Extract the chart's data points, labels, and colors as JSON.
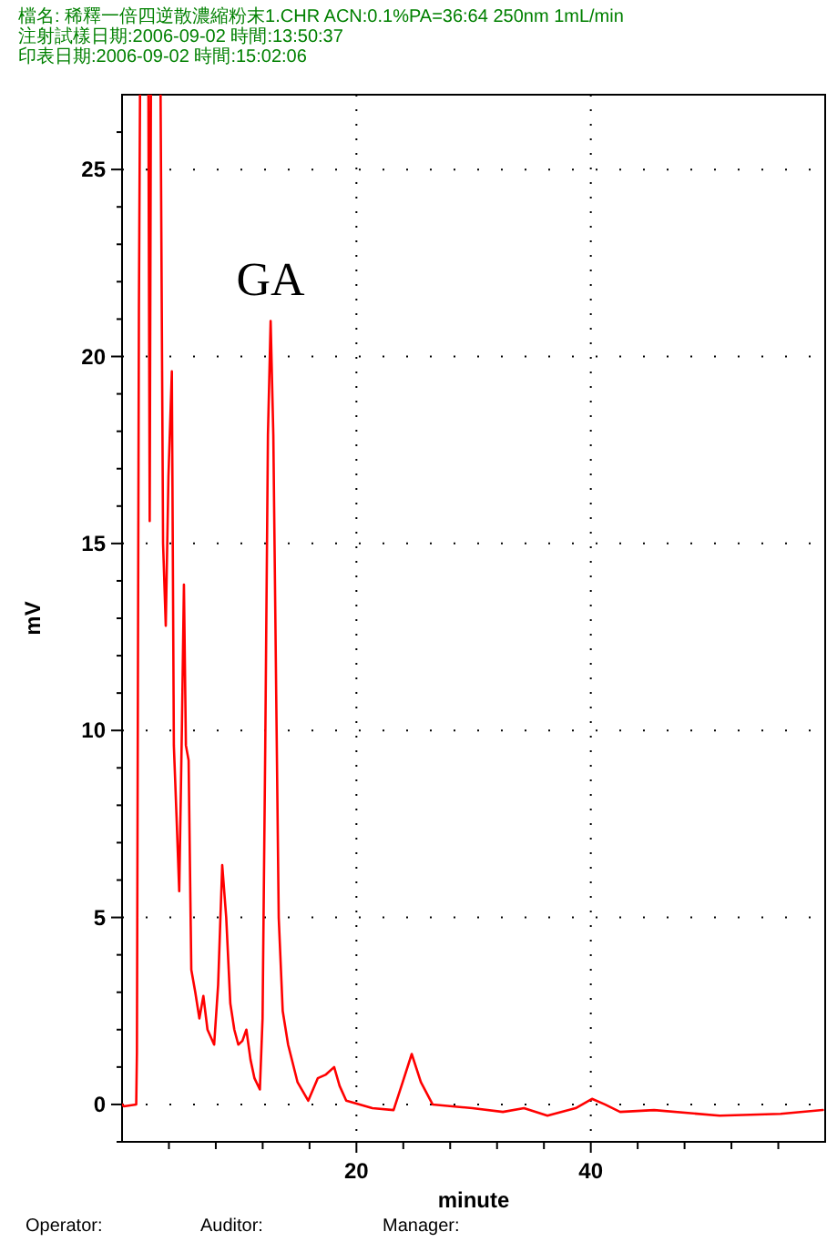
{
  "chart_data": {
    "type": "line",
    "title": "檔名: 稀釋一倍四逆散濃縮粉末1.CHR ACN:0.1%PA=36:64 250nm 1mL/min",
    "subtitle": "注射試樣日期:2006-09-02   時間:13:50:37\n印表日期:2006-09-02   時間:15:02:06",
    "xlabel": "minute",
    "ylabel": "mV",
    "annotations": [
      {
        "text": "GA",
        "x": 12.68,
        "y": 20.95
      },
      "Operator:",
      "Auditor:",
      "Manager:"
    ],
    "series": [
      {
        "color": "#ff0000",
        "x": [
          0,
          0.15,
          1.21,
          1.27,
          1.44,
          1.55,
          2.24,
          2.36,
          2.47,
          3.27,
          3.5,
          3.73,
          3.96,
          4.25,
          4.42,
          4.65,
          4.88,
          5.11,
          5.28,
          5.45,
          5.68,
          5.91,
          6.25,
          6.6,
          6.94,
          7.29,
          7.86,
          8.2,
          8.55,
          8.89,
          9.24,
          9.58,
          9.92,
          10.27,
          10.61,
          10.96,
          11.3,
          11.76,
          11.99,
          12.22,
          12.45,
          12.68,
          12.91,
          13.14,
          13.37,
          13.71,
          14.17,
          14.97,
          15.89,
          16.7,
          17.4,
          18.1,
          18.56,
          19.13,
          21.36,
          23.17,
          23.95,
          24.72,
          25.5,
          26.5,
          29.9,
          32.5,
          34.3,
          36.3,
          38.7,
          40.1,
          41.2,
          42.5,
          45.4,
          51.0,
          56.2,
          59.8
        ],
        "values": [
          0,
          -0.05,
          0,
          1.4,
          21.3,
          null,
          null,
          15.6,
          null,
          null,
          15,
          12.8,
          16.8,
          19.6,
          9.6,
          7.7,
          5.7,
          10.1,
          13.9,
          9.6,
          9.2,
          3.6,
          3.0,
          2.3,
          2.9,
          2.0,
          1.6,
          3.2,
          6.4,
          5.0,
          2.7,
          2.0,
          1.6,
          1.7,
          2.0,
          1.2,
          0.7,
          0.4,
          2.3,
          9.6,
          17.9,
          20.95,
          17.9,
          11.4,
          5.0,
          2.5,
          1.6,
          0.6,
          0.1,
          0.7,
          0.8,
          1.0,
          0.5,
          0.1,
          -0.1,
          -0.15,
          0.6,
          1.35,
          0.6,
          0,
          -0.1,
          -0.2,
          -0.1,
          -0.3,
          -0.1,
          0.15,
          0,
          -0.2,
          -0.15,
          -0.3,
          -0.25,
          -0.15
        ]
      }
    ],
    "xlim": [
      0,
      60
    ],
    "xticks": [
      {
        "value": 4,
        "label": null
      },
      {
        "value": 8,
        "label": null
      },
      {
        "value": 12,
        "label": null
      },
      {
        "value": 16,
        "label": null
      },
      20,
      {
        "value": 24,
        "label": null
      },
      {
        "value": 28,
        "label": null
      },
      {
        "value": 32,
        "label": null
      },
      {
        "value": 36,
        "label": null
      },
      40,
      {
        "value": 44,
        "label": null
      },
      {
        "value": 48,
        "label": null
      },
      {
        "value": 52,
        "label": null
      },
      {
        "value": 56,
        "label": null
      }
    ],
    "ylim": [
      -1,
      27
    ],
    "yticks": [
      {
        "value": -1,
        "label": null
      },
      0,
      {
        "value": 1,
        "label": null
      },
      {
        "value": 2,
        "label": null
      },
      {
        "value": 3,
        "label": null
      },
      {
        "value": 4,
        "label": null
      },
      5,
      {
        "value": 6,
        "label": null
      },
      {
        "value": 7,
        "label": null
      },
      {
        "value": 8,
        "label": null
      },
      {
        "value": 9,
        "label": null
      },
      10,
      {
        "value": 11,
        "label": null
      },
      {
        "value": 12,
        "label": null
      },
      {
        "value": 13,
        "label": null
      },
      {
        "value": 14,
        "label": null
      },
      15,
      {
        "value": 16,
        "label": null
      },
      {
        "value": 17,
        "label": null
      },
      {
        "value": 18,
        "label": null
      },
      {
        "value": 19,
        "label": null
      },
      20,
      {
        "value": 21,
        "label": null
      },
      {
        "value": 22,
        "label": null
      },
      {
        "value": 23,
        "label": null
      },
      {
        "value": 24,
        "label": null
      },
      25,
      {
        "value": 26,
        "label": null
      }
    ],
    "grid": true,
    "marker": "none",
    "line_style": "solid"
  }
}
